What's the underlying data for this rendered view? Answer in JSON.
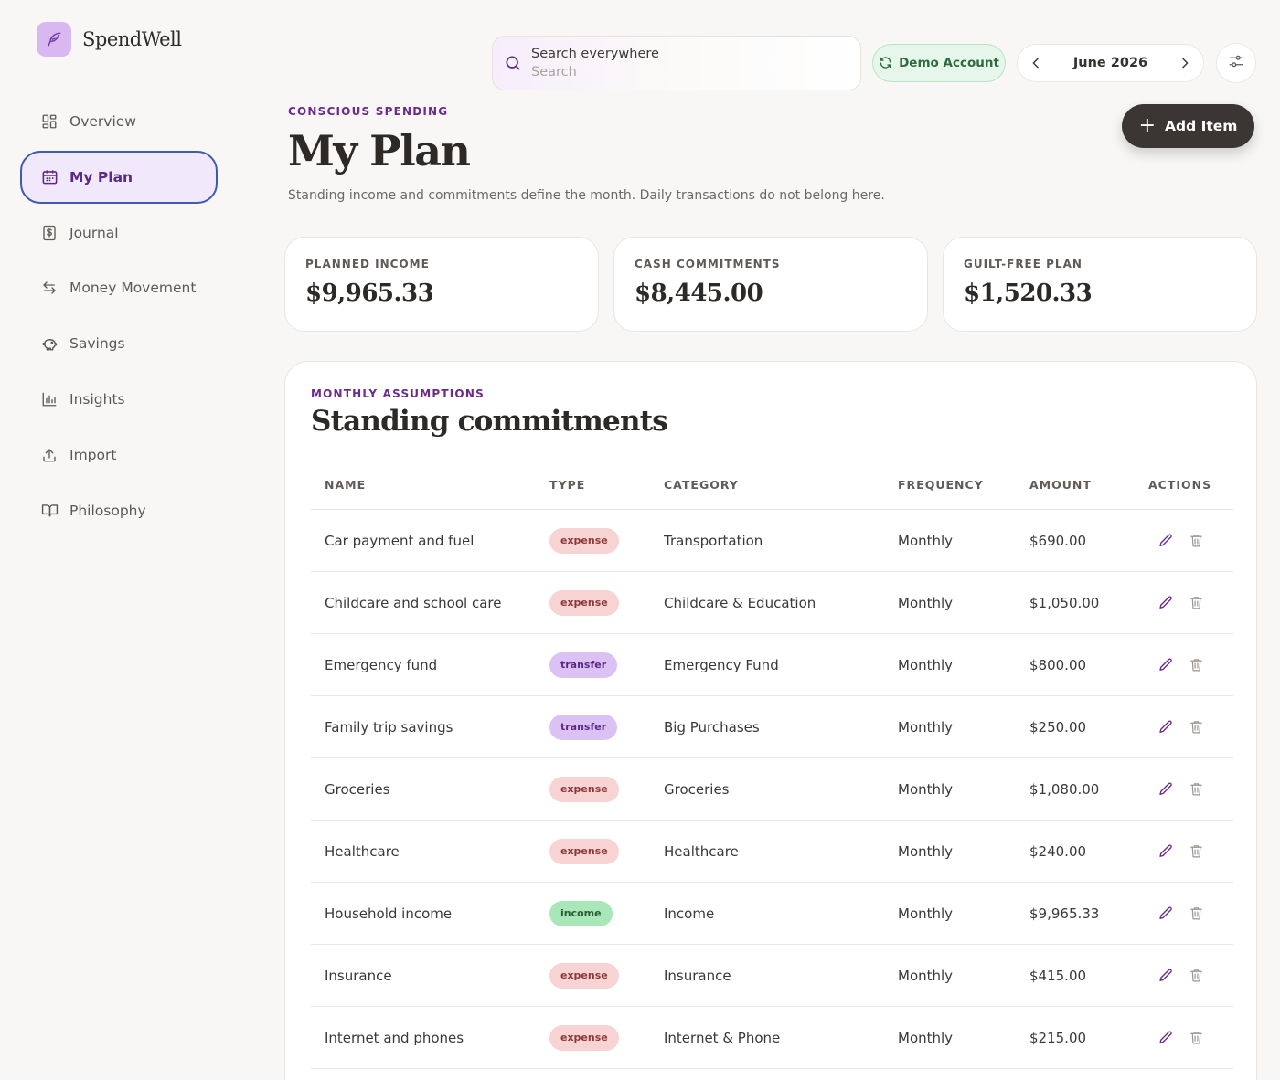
{
  "brand": {
    "name": "SpendWell"
  },
  "sidebar": {
    "items": [
      {
        "label": "Overview",
        "icon": "dashboard-icon"
      },
      {
        "label": "My Plan",
        "icon": "calendar-icon",
        "active": true
      },
      {
        "label": "Journal",
        "icon": "receipt-icon"
      },
      {
        "label": "Money Movement",
        "icon": "arrows-swap-icon"
      },
      {
        "label": "Savings",
        "icon": "piggy-bank-icon"
      },
      {
        "label": "Insights",
        "icon": "bar-chart-icon"
      },
      {
        "label": "Import",
        "icon": "upload-icon"
      },
      {
        "label": "Philosophy",
        "icon": "book-icon"
      }
    ]
  },
  "header": {
    "search_label": "Search everywhere",
    "search_placeholder": "Search",
    "demo_label": "Demo Account",
    "month_label": "June 2026"
  },
  "page": {
    "eyebrow": "CONSCIOUS SPENDING",
    "title": "My Plan",
    "subtitle": "Standing income and commitments define the month. Daily transactions do not belong here.",
    "add_label": "Add Item"
  },
  "summary": [
    {
      "label": "PLANNED INCOME",
      "value": "$9,965.33"
    },
    {
      "label": "CASH COMMITMENTS",
      "value": "$8,445.00"
    },
    {
      "label": "GUILT-FREE PLAN",
      "value": "$1,520.33"
    }
  ],
  "commitments": {
    "eyebrow": "MONTHLY ASSUMPTIONS",
    "title": "Standing commitments",
    "columns": [
      "NAME",
      "TYPE",
      "CATEGORY",
      "FREQUENCY",
      "AMOUNT",
      "ACTIONS"
    ],
    "rows": [
      {
        "name": "Car payment and fuel",
        "type": "expense",
        "category": "Transportation",
        "frequency": "Monthly",
        "amount": "$690.00"
      },
      {
        "name": "Childcare and school care",
        "type": "expense",
        "category": "Childcare & Education",
        "frequency": "Monthly",
        "amount": "$1,050.00"
      },
      {
        "name": "Emergency fund",
        "type": "transfer",
        "category": "Emergency Fund",
        "frequency": "Monthly",
        "amount": "$800.00"
      },
      {
        "name": "Family trip savings",
        "type": "transfer",
        "category": "Big Purchases",
        "frequency": "Monthly",
        "amount": "$250.00"
      },
      {
        "name": "Groceries",
        "type": "expense",
        "category": "Groceries",
        "frequency": "Monthly",
        "amount": "$1,080.00"
      },
      {
        "name": "Healthcare",
        "type": "expense",
        "category": "Healthcare",
        "frequency": "Monthly",
        "amount": "$240.00"
      },
      {
        "name": "Household income",
        "type": "income",
        "category": "Income",
        "frequency": "Monthly",
        "amount": "$9,965.33"
      },
      {
        "name": "Insurance",
        "type": "expense",
        "category": "Insurance",
        "frequency": "Monthly",
        "amount": "$415.00"
      },
      {
        "name": "Internet and phones",
        "type": "expense",
        "category": "Internet & Phone",
        "frequency": "Monthly",
        "amount": "$215.00"
      }
    ]
  },
  "colors": {
    "accent_purple": "#6b2a8c",
    "active_border": "#3f5bb0",
    "expense_badge": "#f7d3d3",
    "transfer_badge": "#dcc1f4",
    "income_badge": "#a9e6b8",
    "demo_green": "#e6f6ea",
    "dark_button": "#3b3633"
  }
}
